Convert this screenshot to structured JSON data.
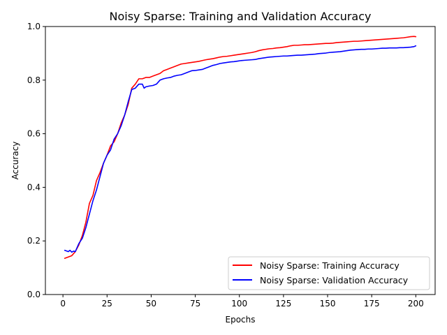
{
  "chart_data": {
    "type": "line",
    "title": "Noisy Sparse: Training and Validation Accuracy",
    "xlabel": "Epochs",
    "ylabel": "Accuracy",
    "xlim": [
      -9.95,
      210.95
    ],
    "ylim": [
      0.0,
      1.0
    ],
    "xticks": [
      0,
      25,
      50,
      75,
      100,
      125,
      150,
      175,
      200
    ],
    "yticks": [
      0.0,
      0.2,
      0.4,
      0.6,
      0.8,
      1.0
    ],
    "xtick_labels": [
      "0",
      "25",
      "50",
      "75",
      "100",
      "125",
      "150",
      "175",
      "200"
    ],
    "ytick_labels": [
      "0.0",
      "0.2",
      "0.4",
      "0.6",
      "0.8",
      "1.0"
    ],
    "grid": false,
    "legend_position": "lower-right",
    "series": [
      {
        "name": "Noisy Sparse: Training Accuracy",
        "color": "#ff0000",
        "points": [
          [
            1,
            0.135
          ],
          [
            3,
            0.14
          ],
          [
            5,
            0.145
          ],
          [
            7,
            0.16
          ],
          [
            9,
            0.185
          ],
          [
            11,
            0.22
          ],
          [
            13,
            0.27
          ],
          [
            15,
            0.34
          ],
          [
            17,
            0.37
          ],
          [
            19,
            0.425
          ],
          [
            21,
            0.455
          ],
          [
            23,
            0.49
          ],
          [
            25,
            0.52
          ],
          [
            27,
            0.555
          ],
          [
            29,
            0.57
          ],
          [
            31,
            0.6
          ],
          [
            33,
            0.64
          ],
          [
            35,
            0.67
          ],
          [
            37,
            0.71
          ],
          [
            39,
            0.77
          ],
          [
            41,
            0.785
          ],
          [
            43,
            0.805
          ],
          [
            45,
            0.805
          ],
          [
            47,
            0.81
          ],
          [
            49,
            0.81
          ],
          [
            51,
            0.815
          ],
          [
            53,
            0.82
          ],
          [
            55,
            0.825
          ],
          [
            57,
            0.835
          ],
          [
            59,
            0.84
          ],
          [
            61,
            0.845
          ],
          [
            63,
            0.85
          ],
          [
            65,
            0.855
          ],
          [
            67,
            0.86
          ],
          [
            69,
            0.862
          ],
          [
            71,
            0.864
          ],
          [
            73,
            0.866
          ],
          [
            75,
            0.868
          ],
          [
            77,
            0.87
          ],
          [
            79,
            0.873
          ],
          [
            81,
            0.876
          ],
          [
            83,
            0.878
          ],
          [
            85,
            0.88
          ],
          [
            87,
            0.883
          ],
          [
            89,
            0.886
          ],
          [
            91,
            0.888
          ],
          [
            93,
            0.889
          ],
          [
            95,
            0.891
          ],
          [
            97,
            0.893
          ],
          [
            99,
            0.895
          ],
          [
            101,
            0.897
          ],
          [
            103,
            0.899
          ],
          [
            105,
            0.901
          ],
          [
            107,
            0.903
          ],
          [
            109,
            0.906
          ],
          [
            111,
            0.91
          ],
          [
            113,
            0.913
          ],
          [
            115,
            0.915
          ],
          [
            117,
            0.917
          ],
          [
            119,
            0.918
          ],
          [
            121,
            0.92
          ],
          [
            123,
            0.921
          ],
          [
            125,
            0.923
          ],
          [
            127,
            0.925
          ],
          [
            129,
            0.928
          ],
          [
            131,
            0.93
          ],
          [
            133,
            0.93
          ],
          [
            135,
            0.931
          ],
          [
            137,
            0.932
          ],
          [
            139,
            0.932
          ],
          [
            141,
            0.933
          ],
          [
            143,
            0.934
          ],
          [
            145,
            0.935
          ],
          [
            147,
            0.936
          ],
          [
            149,
            0.937
          ],
          [
            151,
            0.937
          ],
          [
            153,
            0.938
          ],
          [
            155,
            0.94
          ],
          [
            157,
            0.941
          ],
          [
            159,
            0.942
          ],
          [
            161,
            0.943
          ],
          [
            163,
            0.944
          ],
          [
            165,
            0.945
          ],
          [
            167,
            0.945
          ],
          [
            169,
            0.946
          ],
          [
            171,
            0.947
          ],
          [
            173,
            0.948
          ],
          [
            175,
            0.949
          ],
          [
            177,
            0.95
          ],
          [
            179,
            0.951
          ],
          [
            181,
            0.952
          ],
          [
            183,
            0.953
          ],
          [
            185,
            0.954
          ],
          [
            187,
            0.955
          ],
          [
            189,
            0.956
          ],
          [
            191,
            0.957
          ],
          [
            193,
            0.958
          ],
          [
            195,
            0.96
          ],
          [
            197,
            0.962
          ],
          [
            199,
            0.963
          ],
          [
            200,
            0.962
          ]
        ]
      },
      {
        "name": "Noisy Sparse: Validation Accuracy",
        "color": "#0000ff",
        "points": [
          [
            1,
            0.165
          ],
          [
            3,
            0.16
          ],
          [
            4,
            0.165
          ],
          [
            5,
            0.158
          ],
          [
            6,
            0.162
          ],
          [
            7,
            0.16
          ],
          [
            9,
            0.19
          ],
          [
            11,
            0.21
          ],
          [
            13,
            0.25
          ],
          [
            15,
            0.3
          ],
          [
            17,
            0.35
          ],
          [
            19,
            0.39
          ],
          [
            21,
            0.44
          ],
          [
            23,
            0.49
          ],
          [
            25,
            0.52
          ],
          [
            27,
            0.54
          ],
          [
            29,
            0.58
          ],
          [
            31,
            0.6
          ],
          [
            33,
            0.63
          ],
          [
            35,
            0.67
          ],
          [
            37,
            0.72
          ],
          [
            39,
            0.765
          ],
          [
            41,
            0.77
          ],
          [
            43,
            0.785
          ],
          [
            45,
            0.785
          ],
          [
            46,
            0.77
          ],
          [
            47,
            0.775
          ],
          [
            49,
            0.778
          ],
          [
            51,
            0.78
          ],
          [
            53,
            0.785
          ],
          [
            55,
            0.8
          ],
          [
            57,
            0.805
          ],
          [
            59,
            0.808
          ],
          [
            61,
            0.81
          ],
          [
            63,
            0.815
          ],
          [
            65,
            0.818
          ],
          [
            67,
            0.82
          ],
          [
            69,
            0.825
          ],
          [
            71,
            0.83
          ],
          [
            73,
            0.835
          ],
          [
            75,
            0.836
          ],
          [
            77,
            0.838
          ],
          [
            79,
            0.84
          ],
          [
            81,
            0.845
          ],
          [
            83,
            0.85
          ],
          [
            85,
            0.855
          ],
          [
            87,
            0.858
          ],
          [
            89,
            0.862
          ],
          [
            91,
            0.864
          ],
          [
            93,
            0.866
          ],
          [
            95,
            0.868
          ],
          [
            97,
            0.869
          ],
          [
            99,
            0.871
          ],
          [
            101,
            0.873
          ],
          [
            103,
            0.874
          ],
          [
            105,
            0.875
          ],
          [
            107,
            0.876
          ],
          [
            109,
            0.877
          ],
          [
            111,
            0.88
          ],
          [
            113,
            0.882
          ],
          [
            115,
            0.884
          ],
          [
            117,
            0.886
          ],
          [
            119,
            0.887
          ],
          [
            121,
            0.888
          ],
          [
            123,
            0.889
          ],
          [
            125,
            0.89
          ],
          [
            127,
            0.89
          ],
          [
            129,
            0.891
          ],
          [
            131,
            0.892
          ],
          [
            133,
            0.893
          ],
          [
            135,
            0.893
          ],
          [
            137,
            0.894
          ],
          [
            139,
            0.895
          ],
          [
            141,
            0.896
          ],
          [
            143,
            0.897
          ],
          [
            145,
            0.899
          ],
          [
            147,
            0.9
          ],
          [
            149,
            0.901
          ],
          [
            151,
            0.903
          ],
          [
            153,
            0.904
          ],
          [
            155,
            0.905
          ],
          [
            157,
            0.906
          ],
          [
            159,
            0.908
          ],
          [
            161,
            0.91
          ],
          [
            163,
            0.912
          ],
          [
            165,
            0.913
          ],
          [
            167,
            0.914
          ],
          [
            169,
            0.915
          ],
          [
            171,
            0.915
          ],
          [
            173,
            0.916
          ],
          [
            175,
            0.916
          ],
          [
            177,
            0.917
          ],
          [
            179,
            0.918
          ],
          [
            181,
            0.919
          ],
          [
            183,
            0.919
          ],
          [
            185,
            0.92
          ],
          [
            187,
            0.92
          ],
          [
            189,
            0.92
          ],
          [
            191,
            0.921
          ],
          [
            193,
            0.921
          ],
          [
            195,
            0.922
          ],
          [
            197,
            0.923
          ],
          [
            199,
            0.925
          ],
          [
            200,
            0.928
          ]
        ]
      }
    ]
  }
}
